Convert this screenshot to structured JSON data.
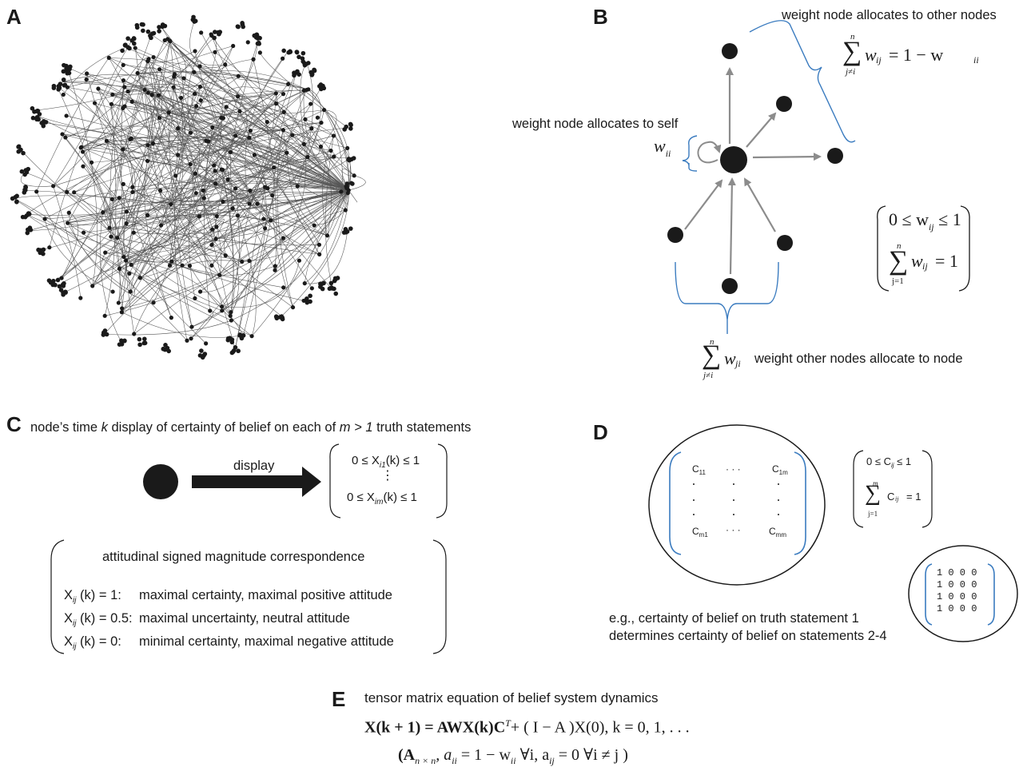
{
  "panels": {
    "A": {
      "label": "A"
    },
    "B": {
      "label": "B",
      "label_other": "weight node allocates to other nodes",
      "label_self": "weight node allocates to self",
      "self_symbol": "w",
      "self_sub": "ii",
      "eq_other": {
        "sum": "∑",
        "top": "n",
        "bottom": "j≠i",
        "var": "w",
        "sub": "ij",
        "rhs": "= 1 − w",
        "rhs_sub": "ii"
      },
      "constraint1": {
        "lhs": "0 ≤ w",
        "sub": "ij",
        "rhs": "≤ 1"
      },
      "constraint2": {
        "sum": "∑",
        "top": "n",
        "bottom": "j=1",
        "var": "w",
        "sub": "ij",
        "rhs": "= 1"
      },
      "eq_in": {
        "sum": "∑",
        "top": "n",
        "bottom": "j≠i",
        "var": "w",
        "sub": "ji"
      },
      "label_in": "weight other nodes allocate to node"
    },
    "C": {
      "label": "C",
      "title_pre": "node’s time ",
      "title_k": "k",
      "title_mid": " display of certainty of belief on each of ",
      "title_m": "m > 1",
      "title_post": " truth statements",
      "arrow_label": "display",
      "range1": {
        "pre": "0 ≤ X",
        "sub": "i1",
        "post": "(k) ≤ 1"
      },
      "dots": "⋮",
      "range2": {
        "pre": "0  ≤ X",
        "sub": "im",
        "post": "(k) ≤ 1"
      },
      "corr_title": "attitudinal signed magnitude correspondence",
      "corr_rows": [
        {
          "x": "X",
          "sub": "ij",
          "val": " (k) = 1:",
          "desc": "maximal certainty, maximal positive attitude"
        },
        {
          "x": "X",
          "sub": "ij",
          "val": " (k) = 0.5:",
          "desc": "maximal uncertainty, neutral attitude"
        },
        {
          "x": "X",
          "sub": "ij",
          "val": " (k) = 0:",
          "desc": "minimal certainty, maximal negative attitude"
        }
      ]
    },
    "D": {
      "label": "D",
      "c11": "C",
      "c11_sub": "11",
      "c1m": "C",
      "c1m_sub": "1m",
      "cm1": "C",
      "cm1_sub": "m1",
      "cmm": "C",
      "cmm_sub": "mm",
      "hdots": "· · ·",
      "constraint1": {
        "lhs": "0 ≤ C",
        "sub": "ij",
        "rhs": "≤ 1"
      },
      "constraint2": {
        "sum": "∑",
        "top": "m",
        "bottom": "j=1",
        "var": "C",
        "sub": "ij",
        "rhs": "= 1"
      },
      "example_matrix": [
        "1  0  0  0",
        "1  0  0  0",
        "1  0  0  0",
        "1  0  0  0"
      ],
      "caption1": "e.g., certainty of belief on truth statement 1",
      "caption2": "determines certainty of belief on statements 2-4"
    },
    "E": {
      "label": "E",
      "title": "tensor matrix equation of belief system dynamics",
      "eq1": "X(k + 1) = AWX(k)C",
      "eq1_sup": "T",
      "eq1_rest": "+ ( I − A )X(0),  k = 0, 1, . . .",
      "eq2": "(A",
      "eq2_sub": "n × n",
      "eq2_rest": ",  a",
      "eq2_sub2": "ii",
      "eq2_rest2": " = 1 − w",
      "eq2_sub3": "ii",
      "eq2_rest3": " ∀i,  a",
      "eq2_sub4": "ij",
      "eq2_rest4": " = 0 ∀i ≠ j )"
    }
  },
  "colors": {
    "bracket": "#3a7bbf",
    "arrow": "#8c8c8c",
    "node": "#1a1a1a"
  }
}
